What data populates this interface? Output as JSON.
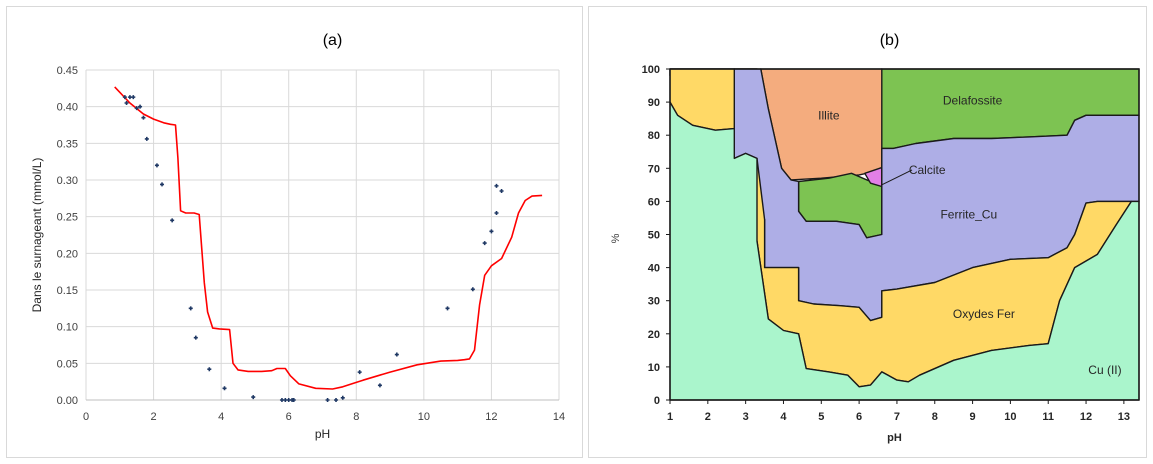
{
  "chart_data": [
    {
      "type": "scatter",
      "title": "(a)",
      "xlabel": "pH",
      "ylabel": "Dans le surnageant (mmol/L)",
      "xlim": [
        0,
        14
      ],
      "ylim": [
        0,
        0.45
      ],
      "x_ticks": [
        "0",
        "2",
        "4",
        "6",
        "8",
        "10",
        "12",
        "14"
      ],
      "y_ticks": [
        "0.00",
        "0.05",
        "0.10",
        "0.15",
        "0.20",
        "0.25",
        "0.30",
        "0.35",
        "0.40",
        "0.45"
      ],
      "grid": true,
      "series": [
        {
          "kind": "points",
          "color": "#1f3864",
          "points": [
            [
              1.15,
              0.413
            ],
            [
              1.2,
              0.405
            ],
            [
              1.3,
              0.413
            ],
            [
              1.4,
              0.413
            ],
            [
              1.5,
              0.398
            ],
            [
              1.6,
              0.4
            ],
            [
              1.7,
              0.385
            ],
            [
              1.8,
              0.356
            ],
            [
              2.1,
              0.32
            ],
            [
              2.25,
              0.294
            ],
            [
              2.55,
              0.245
            ],
            [
              3.1,
              0.125
            ],
            [
              3.25,
              0.085
            ],
            [
              3.65,
              0.042
            ],
            [
              4.1,
              0.016
            ],
            [
              4.95,
              0.004
            ],
            [
              5.8,
              0.0
            ],
            [
              5.9,
              0.0
            ],
            [
              6.0,
              0.0
            ],
            [
              6.1,
              0.0
            ],
            [
              6.15,
              0.0
            ],
            [
              7.15,
              0.0
            ],
            [
              7.4,
              0.0
            ],
            [
              7.6,
              0.003
            ],
            [
              8.1,
              0.038
            ],
            [
              8.7,
              0.02
            ],
            [
              9.2,
              0.062
            ],
            [
              10.7,
              0.125
            ],
            [
              11.45,
              0.151
            ],
            [
              11.8,
              0.214
            ],
            [
              12.0,
              0.23
            ],
            [
              12.15,
              0.292
            ],
            [
              12.15,
              0.255
            ],
            [
              12.3,
              0.285
            ]
          ]
        },
        {
          "kind": "line",
          "color": "#ff0000",
          "points": [
            [
              0.85,
              0.427
            ],
            [
              1.3,
              0.405
            ],
            [
              1.7,
              0.39
            ],
            [
              2.0,
              0.383
            ],
            [
              2.3,
              0.378
            ],
            [
              2.5,
              0.376
            ],
            [
              2.65,
              0.375
            ],
            [
              2.72,
              0.33
            ],
            [
              2.8,
              0.258
            ],
            [
              2.95,
              0.255
            ],
            [
              3.2,
              0.255
            ],
            [
              3.35,
              0.253
            ],
            [
              3.5,
              0.16
            ],
            [
              3.6,
              0.12
            ],
            [
              3.75,
              0.098
            ],
            [
              3.95,
              0.097
            ],
            [
              4.25,
              0.096
            ],
            [
              4.35,
              0.05
            ],
            [
              4.5,
              0.041
            ],
            [
              4.8,
              0.039
            ],
            [
              5.2,
              0.039
            ],
            [
              5.5,
              0.04
            ],
            [
              5.65,
              0.043
            ],
            [
              5.9,
              0.043
            ],
            [
              6.05,
              0.033
            ],
            [
              6.3,
              0.022
            ],
            [
              6.8,
              0.016
            ],
            [
              7.3,
              0.015
            ],
            [
              7.6,
              0.018
            ],
            [
              8.2,
              0.027
            ],
            [
              9.0,
              0.038
            ],
            [
              9.8,
              0.048
            ],
            [
              10.5,
              0.053
            ],
            [
              11.0,
              0.054
            ],
            [
              11.2,
              0.055
            ],
            [
              11.35,
              0.056
            ],
            [
              11.5,
              0.068
            ],
            [
              11.65,
              0.13
            ],
            [
              11.8,
              0.17
            ],
            [
              12.0,
              0.183
            ],
            [
              12.3,
              0.193
            ],
            [
              12.6,
              0.222
            ],
            [
              12.8,
              0.255
            ],
            [
              13.0,
              0.272
            ],
            [
              13.2,
              0.278
            ],
            [
              13.5,
              0.279
            ]
          ]
        }
      ]
    },
    {
      "type": "area",
      "title": "(b)",
      "xlabel": "pH",
      "ylabel": "%",
      "xlim": [
        1,
        13.4
      ],
      "ylim": [
        0,
        100
      ],
      "x_ticks": [
        "1",
        "2",
        "3",
        "4",
        "5",
        "6",
        "7",
        "8",
        "9",
        "10",
        "11",
        "12",
        "13"
      ],
      "y_ticks": [
        "0",
        "10",
        "20",
        "30",
        "40",
        "50",
        "60",
        "70",
        "80",
        "90",
        "100"
      ],
      "regions": [
        {
          "label": "Delafossite",
          "color": "#7dc352",
          "label_at": [
            9.0,
            90.5
          ],
          "polygon": [
            [
              6.6,
              100
            ],
            [
              13.4,
              100
            ],
            [
              13.4,
              86
            ],
            [
              12.0,
              86
            ],
            [
              11.7,
              84.5
            ],
            [
              11.5,
              80
            ],
            [
              10.5,
              79.5
            ],
            [
              9.5,
              79
            ],
            [
              8.5,
              79
            ],
            [
              7.5,
              77.5
            ],
            [
              6.9,
              76
            ],
            [
              6.6,
              76
            ]
          ]
        },
        {
          "label": "",
          "color": "#7dc352",
          "label_at": null,
          "polygon": [
            [
              1,
              100
            ],
            [
              3.3,
              100
            ],
            [
              3.3,
              98
            ],
            [
              1,
              98
            ]
          ]
        },
        {
          "label": "Illite",
          "color": "#f4ac7e",
          "label_at": [
            5.2,
            86
          ],
          "polygon": [
            [
              3.4,
              100
            ],
            [
              6.6,
              100
            ],
            [
              6.6,
              69.5
            ],
            [
              6.0,
              68
            ],
            [
              5.0,
              67
            ],
            [
              4.2,
              66.5
            ],
            [
              3.95,
              70
            ],
            [
              3.6,
              88
            ],
            [
              3.4,
              100
            ]
          ]
        },
        {
          "label": "",
          "color": "#7dc352",
          "label_at": null,
          "polygon": [
            [
              4.4,
              66
            ],
            [
              5.2,
              67
            ],
            [
              5.8,
              68.5
            ],
            [
              6.3,
              66
            ],
            [
              6.6,
              65.5
            ],
            [
              6.6,
              50
            ],
            [
              6.2,
              49
            ],
            [
              6.0,
              53
            ],
            [
              5.4,
              54
            ],
            [
              4.6,
              54
            ],
            [
              4.4,
              57
            ]
          ]
        },
        {
          "label": "Calcite",
          "color": "#e27fe6",
          "label_at": [
            7.8,
            69.5
          ],
          "callout": [
            [
              7.4,
              69.5
            ],
            [
              6.6,
              65.0
            ]
          ],
          "polygon": [
            [
              6.15,
              68.5
            ],
            [
              6.6,
              70.2
            ],
            [
              6.6,
              64.5
            ],
            [
              6.3,
              65.5
            ]
          ]
        },
        {
          "label": "Ferrite_Cu",
          "color": "#aeaee6",
          "label_at": [
            8.9,
            56
          ],
          "polygon": [
            [
              2.7,
              100
            ],
            [
              3.4,
              100
            ],
            [
              3.6,
              88
            ],
            [
              3.95,
              70
            ],
            [
              4.2,
              66.5
            ],
            [
              4.4,
              66
            ],
            [
              4.4,
              57
            ],
            [
              4.6,
              54
            ],
            [
              5.4,
              54
            ],
            [
              6.0,
              53
            ],
            [
              6.2,
              49
            ],
            [
              6.6,
              50
            ],
            [
              6.6,
              76
            ],
            [
              6.9,
              76
            ],
            [
              7.5,
              77.5
            ],
            [
              8.5,
              79
            ],
            [
              9.5,
              79
            ],
            [
              10.5,
              79.5
            ],
            [
              11.5,
              80
            ],
            [
              11.7,
              84.5
            ],
            [
              12.0,
              86
            ],
            [
              13.4,
              86
            ],
            [
              13.4,
              60
            ],
            [
              12.3,
              60
            ],
            [
              12.0,
              59.5
            ],
            [
              11.7,
              50
            ],
            [
              11.5,
              46
            ],
            [
              11.0,
              43
            ],
            [
              10.0,
              42.5
            ],
            [
              9.0,
              40
            ],
            [
              8.0,
              35.5
            ],
            [
              7.0,
              33.5
            ],
            [
              6.6,
              33
            ],
            [
              6.6,
              25
            ],
            [
              6.3,
              24
            ],
            [
              6.0,
              28
            ],
            [
              5.5,
              28.5
            ],
            [
              4.8,
              29
            ],
            [
              4.4,
              30
            ],
            [
              4.4,
              40
            ],
            [
              4.0,
              40
            ],
            [
              3.5,
              40
            ],
            [
              3.5,
              54.5
            ],
            [
              3.3,
              55
            ],
            [
              2.9,
              55
            ],
            [
              2.7,
              60
            ]
          ]
        },
        {
          "label": "Oxydes Fer",
          "color": "#ffd966",
          "label_at": [
            9.3,
            26
          ],
          "polygon": [
            [
              1,
              100
            ],
            [
              2.7,
              100
            ],
            [
              2.7,
              82
            ],
            [
              2.2,
              81.5
            ],
            [
              1.6,
              83
            ],
            [
              1.2,
              86
            ],
            [
              1,
              90
            ]
          ]
        },
        {
          "label": "",
          "color": "#ffd966",
          "label_at": null,
          "polygon": [
            [
              2.7,
              73
            ],
            [
              3.0,
              74.5
            ],
            [
              3.3,
              73
            ],
            [
              3.5,
              54.5
            ],
            [
              3.5,
              40
            ],
            [
              4.4,
              40
            ],
            [
              4.4,
              30
            ],
            [
              4.8,
              29
            ],
            [
              5.5,
              28.5
            ],
            [
              6.0,
              28
            ],
            [
              6.3,
              24
            ],
            [
              6.6,
              25
            ],
            [
              6.6,
              33
            ],
            [
              7.0,
              33.5
            ],
            [
              8.0,
              35.5
            ],
            [
              9.0,
              40
            ],
            [
              10.0,
              42.5
            ],
            [
              11.0,
              43
            ],
            [
              11.5,
              46
            ],
            [
              11.7,
              50
            ],
            [
              12.0,
              59.5
            ],
            [
              12.3,
              60
            ],
            [
              13.2,
              60
            ],
            [
              12.8,
              53
            ],
            [
              12.3,
              44
            ],
            [
              11.7,
              40
            ],
            [
              11.3,
              30
            ],
            [
              11.0,
              17
            ],
            [
              10.5,
              16.5
            ],
            [
              9.5,
              15
            ],
            [
              8.5,
              12
            ],
            [
              7.6,
              7.5
            ],
            [
              7.3,
              5.5
            ],
            [
              7.0,
              6
            ],
            [
              6.6,
              8.5
            ],
            [
              6.3,
              4.5
            ],
            [
              6.0,
              4
            ],
            [
              5.7,
              7.5
            ],
            [
              5.2,
              8.5
            ],
            [
              4.6,
              9.5
            ],
            [
              4.4,
              20
            ],
            [
              4.0,
              21
            ],
            [
              3.6,
              24.5
            ],
            [
              3.3,
              48
            ],
            [
              3.0,
              54
            ],
            [
              2.7,
              60
            ]
          ]
        },
        {
          "label": "Cu (II)",
          "color": "#aaf5cc",
          "label_at": [
            12.5,
            9
          ],
          "polygon": [
            [
              1,
              90
            ],
            [
              1.2,
              86
            ],
            [
              1.6,
              83
            ],
            [
              2.2,
              81.5
            ],
            [
              2.7,
              82
            ],
            [
              2.7,
              73
            ],
            [
              3.0,
              74.5
            ],
            [
              3.3,
              73
            ],
            [
              3.3,
              48
            ],
            [
              3.6,
              24.5
            ],
            [
              4.0,
              21
            ],
            [
              4.4,
              20
            ],
            [
              4.6,
              9.5
            ],
            [
              5.2,
              8.5
            ],
            [
              5.7,
              7.5
            ],
            [
              6.0,
              4
            ],
            [
              6.3,
              4.5
            ],
            [
              6.6,
              8.5
            ],
            [
              7.0,
              6
            ],
            [
              7.3,
              5.5
            ],
            [
              7.6,
              7.5
            ],
            [
              8.5,
              12
            ],
            [
              9.5,
              15
            ],
            [
              10.5,
              16.5
            ],
            [
              11.0,
              17
            ],
            [
              11.3,
              30
            ],
            [
              11.7,
              40
            ],
            [
              12.3,
              44
            ],
            [
              12.8,
              53
            ],
            [
              13.2,
              60
            ],
            [
              13.4,
              60
            ],
            [
              13.4,
              0
            ],
            [
              1,
              0
            ]
          ]
        }
      ]
    }
  ]
}
